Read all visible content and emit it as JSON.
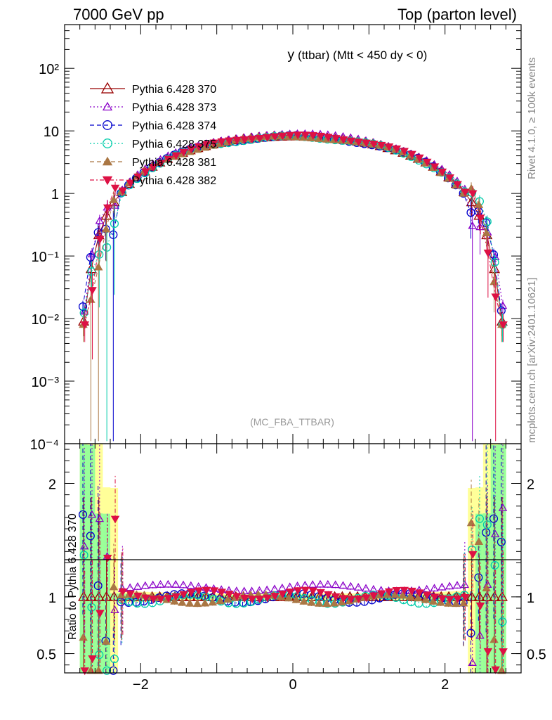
{
  "header": {
    "left": "7000 GeV pp",
    "right": "Top (parton level)"
  },
  "side": {
    "rivet": "Rivet 4.1.0, ≥ 100k events",
    "mcplots": "mcplots.cern.ch [arXiv:2401.10621]"
  },
  "plot": {
    "title_main": "y",
    "title_sub": "(ttbar) (Mtt < 450 dy < 0)",
    "watermark": "(MC_FBA_TTBAR)",
    "ratio_ylabel": "Ratio to Pythia 6.428 370"
  },
  "colors": {
    "band_yellow": "#ffff99",
    "band_green": "#99ff99"
  },
  "chart_data": {
    "type": "line",
    "xlim": [
      -3.0,
      3.0
    ],
    "main": {
      "yscale": "log",
      "ylim": [
        0.0001,
        500
      ],
      "yticks": [
        {
          "value": 0.0001,
          "label": "10⁻⁴"
        },
        {
          "value": 0.001,
          "label": "10⁻³"
        },
        {
          "value": 0.01,
          "label": "10⁻²"
        },
        {
          "value": 0.1,
          "label": "10⁻¹"
        },
        {
          "value": 1,
          "label": "1"
        },
        {
          "value": 10,
          "label": "10"
        },
        {
          "value": 100,
          "label": "10²"
        }
      ]
    },
    "ratio": {
      "ylim": [
        0.33,
        2.35
      ],
      "yticks": [
        {
          "value": 0.5,
          "label": "0.5"
        },
        {
          "value": 1,
          "label": "1"
        },
        {
          "value": 2,
          "label": "2"
        }
      ]
    },
    "xticks": [
      {
        "value": -2,
        "label": "−2"
      },
      {
        "value": 0,
        "label": "0"
      },
      {
        "value": 2,
        "label": "2"
      }
    ],
    "series": [
      {
        "name": "Pythia 6.428 370",
        "color": "#990000",
        "marker": "triangle-open",
        "dash": "",
        "dx": 0.0,
        "amp": 0.0,
        "freq": 0.0,
        "phase": 0.0,
        "bias": 0.0
      },
      {
        "name": "Pythia 6.428 373",
        "color": "#8a00c8",
        "marker": "triangle-open-small",
        "dash": "2,3",
        "dx": 0.01,
        "amp": 0.03,
        "freq": 3.1,
        "phase": 0.4,
        "bias": 0.08
      },
      {
        "name": "Pythia 6.428 374",
        "color": "#0000cc",
        "marker": "circle-open",
        "dash": "6,4",
        "dx": -0.01,
        "amp": 0.04,
        "freq": 4.3,
        "phase": 1.3,
        "bias": -0.01
      },
      {
        "name": "Pythia 6.428 375",
        "color": "#00ccaa",
        "marker": "circle-open",
        "dash": "2,3",
        "dx": 0.005,
        "amp": 0.04,
        "freq": 5.1,
        "phase": 2.2,
        "bias": -0.02
      },
      {
        "name": "Pythia 6.428 381",
        "color": "#aa7744",
        "marker": "triangle-filled",
        "dash": "6,4",
        "dx": -0.005,
        "amp": 0.04,
        "freq": 3.7,
        "phase": 3.1,
        "bias": -0.02
      },
      {
        "name": "Pythia 6.428 382",
        "color": "#dd1144",
        "marker": "triangle-down-filled",
        "dash": "6,3,2,3",
        "dx": 0.015,
        "amp": 0.04,
        "freq": 4.9,
        "phase": 0.9,
        "bias": 0.02
      }
    ]
  }
}
